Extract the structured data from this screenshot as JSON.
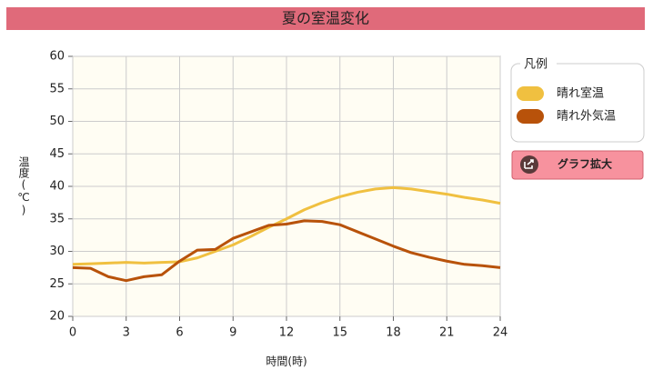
{
  "chart_data": {
    "type": "line",
    "title": "夏の室温変化",
    "x": [
      0,
      1,
      2,
      3,
      4,
      5,
      6,
      7,
      8,
      9,
      10,
      11,
      12,
      13,
      14,
      15,
      16,
      17,
      18,
      19,
      20,
      21,
      22,
      23,
      24
    ],
    "series": [
      {
        "name": "晴れ室温",
        "color": "#f0c040",
        "values": [
          28.0,
          28.1,
          28.2,
          28.3,
          28.2,
          28.3,
          28.4,
          29.0,
          30.0,
          31.0,
          32.3,
          33.7,
          35.0,
          36.4,
          37.5,
          38.4,
          39.1,
          39.6,
          39.8,
          39.6,
          39.2,
          38.8,
          38.3,
          37.9,
          37.4
        ]
      },
      {
        "name": "晴れ外気温",
        "color": "#b8520a",
        "values": [
          27.5,
          27.4,
          26.1,
          25.5,
          26.1,
          26.4,
          28.5,
          30.2,
          30.3,
          32.0,
          33.0,
          34.0,
          34.2,
          34.7,
          34.6,
          34.1,
          33.0,
          31.9,
          30.8,
          29.8,
          29.1,
          28.5,
          28.0,
          27.8,
          27.5
        ]
      }
    ],
    "xlim": [
      0,
      24
    ],
    "xticks": [
      0,
      3,
      6,
      9,
      12,
      15,
      18,
      21,
      24
    ],
    "ylim": [
      20,
      60
    ],
    "yticks": [
      20,
      25,
      30,
      35,
      40,
      45,
      50,
      55,
      60
    ],
    "x_label": "時間(時)",
    "y_label": "温度(℃)",
    "grid": true,
    "legend_title": "凡例",
    "button": "グラフ拡大"
  }
}
